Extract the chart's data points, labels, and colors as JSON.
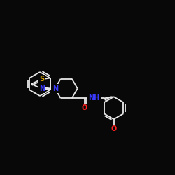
{
  "bg_color": "#080808",
  "bond_color": "#e8e8e8",
  "atom_colors": {
    "S": "#d4a000",
    "N": "#3a3aff",
    "O": "#ff2020",
    "C": "#e8e8e8"
  },
  "bond_width": 1.3,
  "font_size": 7.0
}
